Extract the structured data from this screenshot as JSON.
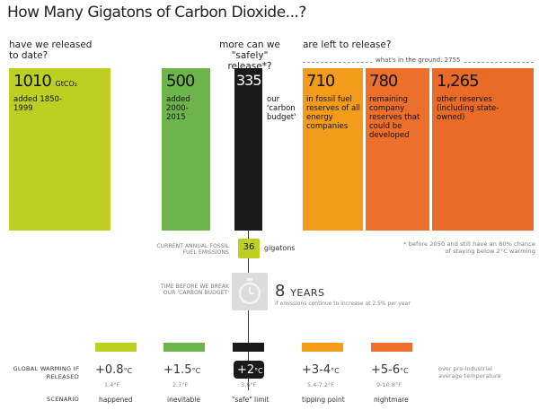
{
  "title": "How Many Gigatons of Carbon Dioxide...?",
  "questions": {
    "released": "have we released to date?",
    "more": "more can we \"safely\" release*?",
    "left": "are left to release?"
  },
  "in_ground_label": "what's in the ground: 2755",
  "unit": "GtCO₂",
  "colors": {
    "lime": "#bccf22",
    "green": "#6db44a",
    "black": "#1a1a1a",
    "orange1": "#f39b1b",
    "orange2": "#ec6f2c",
    "orange3": "#ea6a28"
  },
  "chart_data": {
    "type": "bar",
    "title": "How Many Gigatons of Carbon Dioxide...?",
    "categories": [
      "added 1850-1999",
      "added 2000-2015",
      "our 'carbon budget'",
      "in fossil fuel reserves of all energy companies",
      "remaining company reserves that could be developed",
      "other reserves (including state-owned)"
    ],
    "values": [
      1010,
      500,
      335,
      710,
      780,
      1265
    ],
    "labels": [
      "1010",
      "500",
      "335",
      "710",
      "780",
      "1,265"
    ]
  },
  "bars": [
    {
      "value": "1010",
      "unit": "GtCO₂",
      "desc": "added 1850-1999"
    },
    {
      "value": "500",
      "desc": "added 2000-2015"
    },
    {
      "value": "335",
      "desc": "our 'carbon budget'"
    },
    {
      "value": "710",
      "desc": "in fossil fuel reserves of all energy companies"
    },
    {
      "value": "780",
      "desc": "remaining company reserves that could be developed"
    },
    {
      "value": "1,265",
      "desc": "other reserves (including state-owned)"
    }
  ],
  "footnote": "* before 2050 and still have an 80% chance of staying below 2°C warming",
  "emissions": {
    "label": "CURRENT ANNUAL FOSSIL FUEL EMISSIONS",
    "value": "36",
    "unit": "gigatons"
  },
  "time": {
    "label": "TIME BEFORE WE BREAK OUR 'CARBON BUDGET'",
    "number": "8",
    "unit": "YEARS",
    "note": "if emissions continue to increase at 2.5% per year"
  },
  "warming": {
    "label": "GLOBAL WARMING IF RELEASED",
    "scenario_label": "SCENARIO",
    "note": "over pre-industrial average temperature",
    "items": [
      {
        "c": "+0.8",
        "f": "1.4°F",
        "scenario": "happened"
      },
      {
        "c": "+1.5",
        "f": "2.7°F",
        "scenario": "inevitable"
      },
      {
        "c": "+2",
        "f": "3.6°F",
        "scenario": "\"safe\" limit"
      },
      {
        "c": "+3-4",
        "f": "5.4-7.2°F",
        "scenario": "tipping point"
      },
      {
        "c": "+5-6",
        "f": "9-10.8°F",
        "scenario": "nightmare"
      }
    ],
    "unit": "°C"
  }
}
